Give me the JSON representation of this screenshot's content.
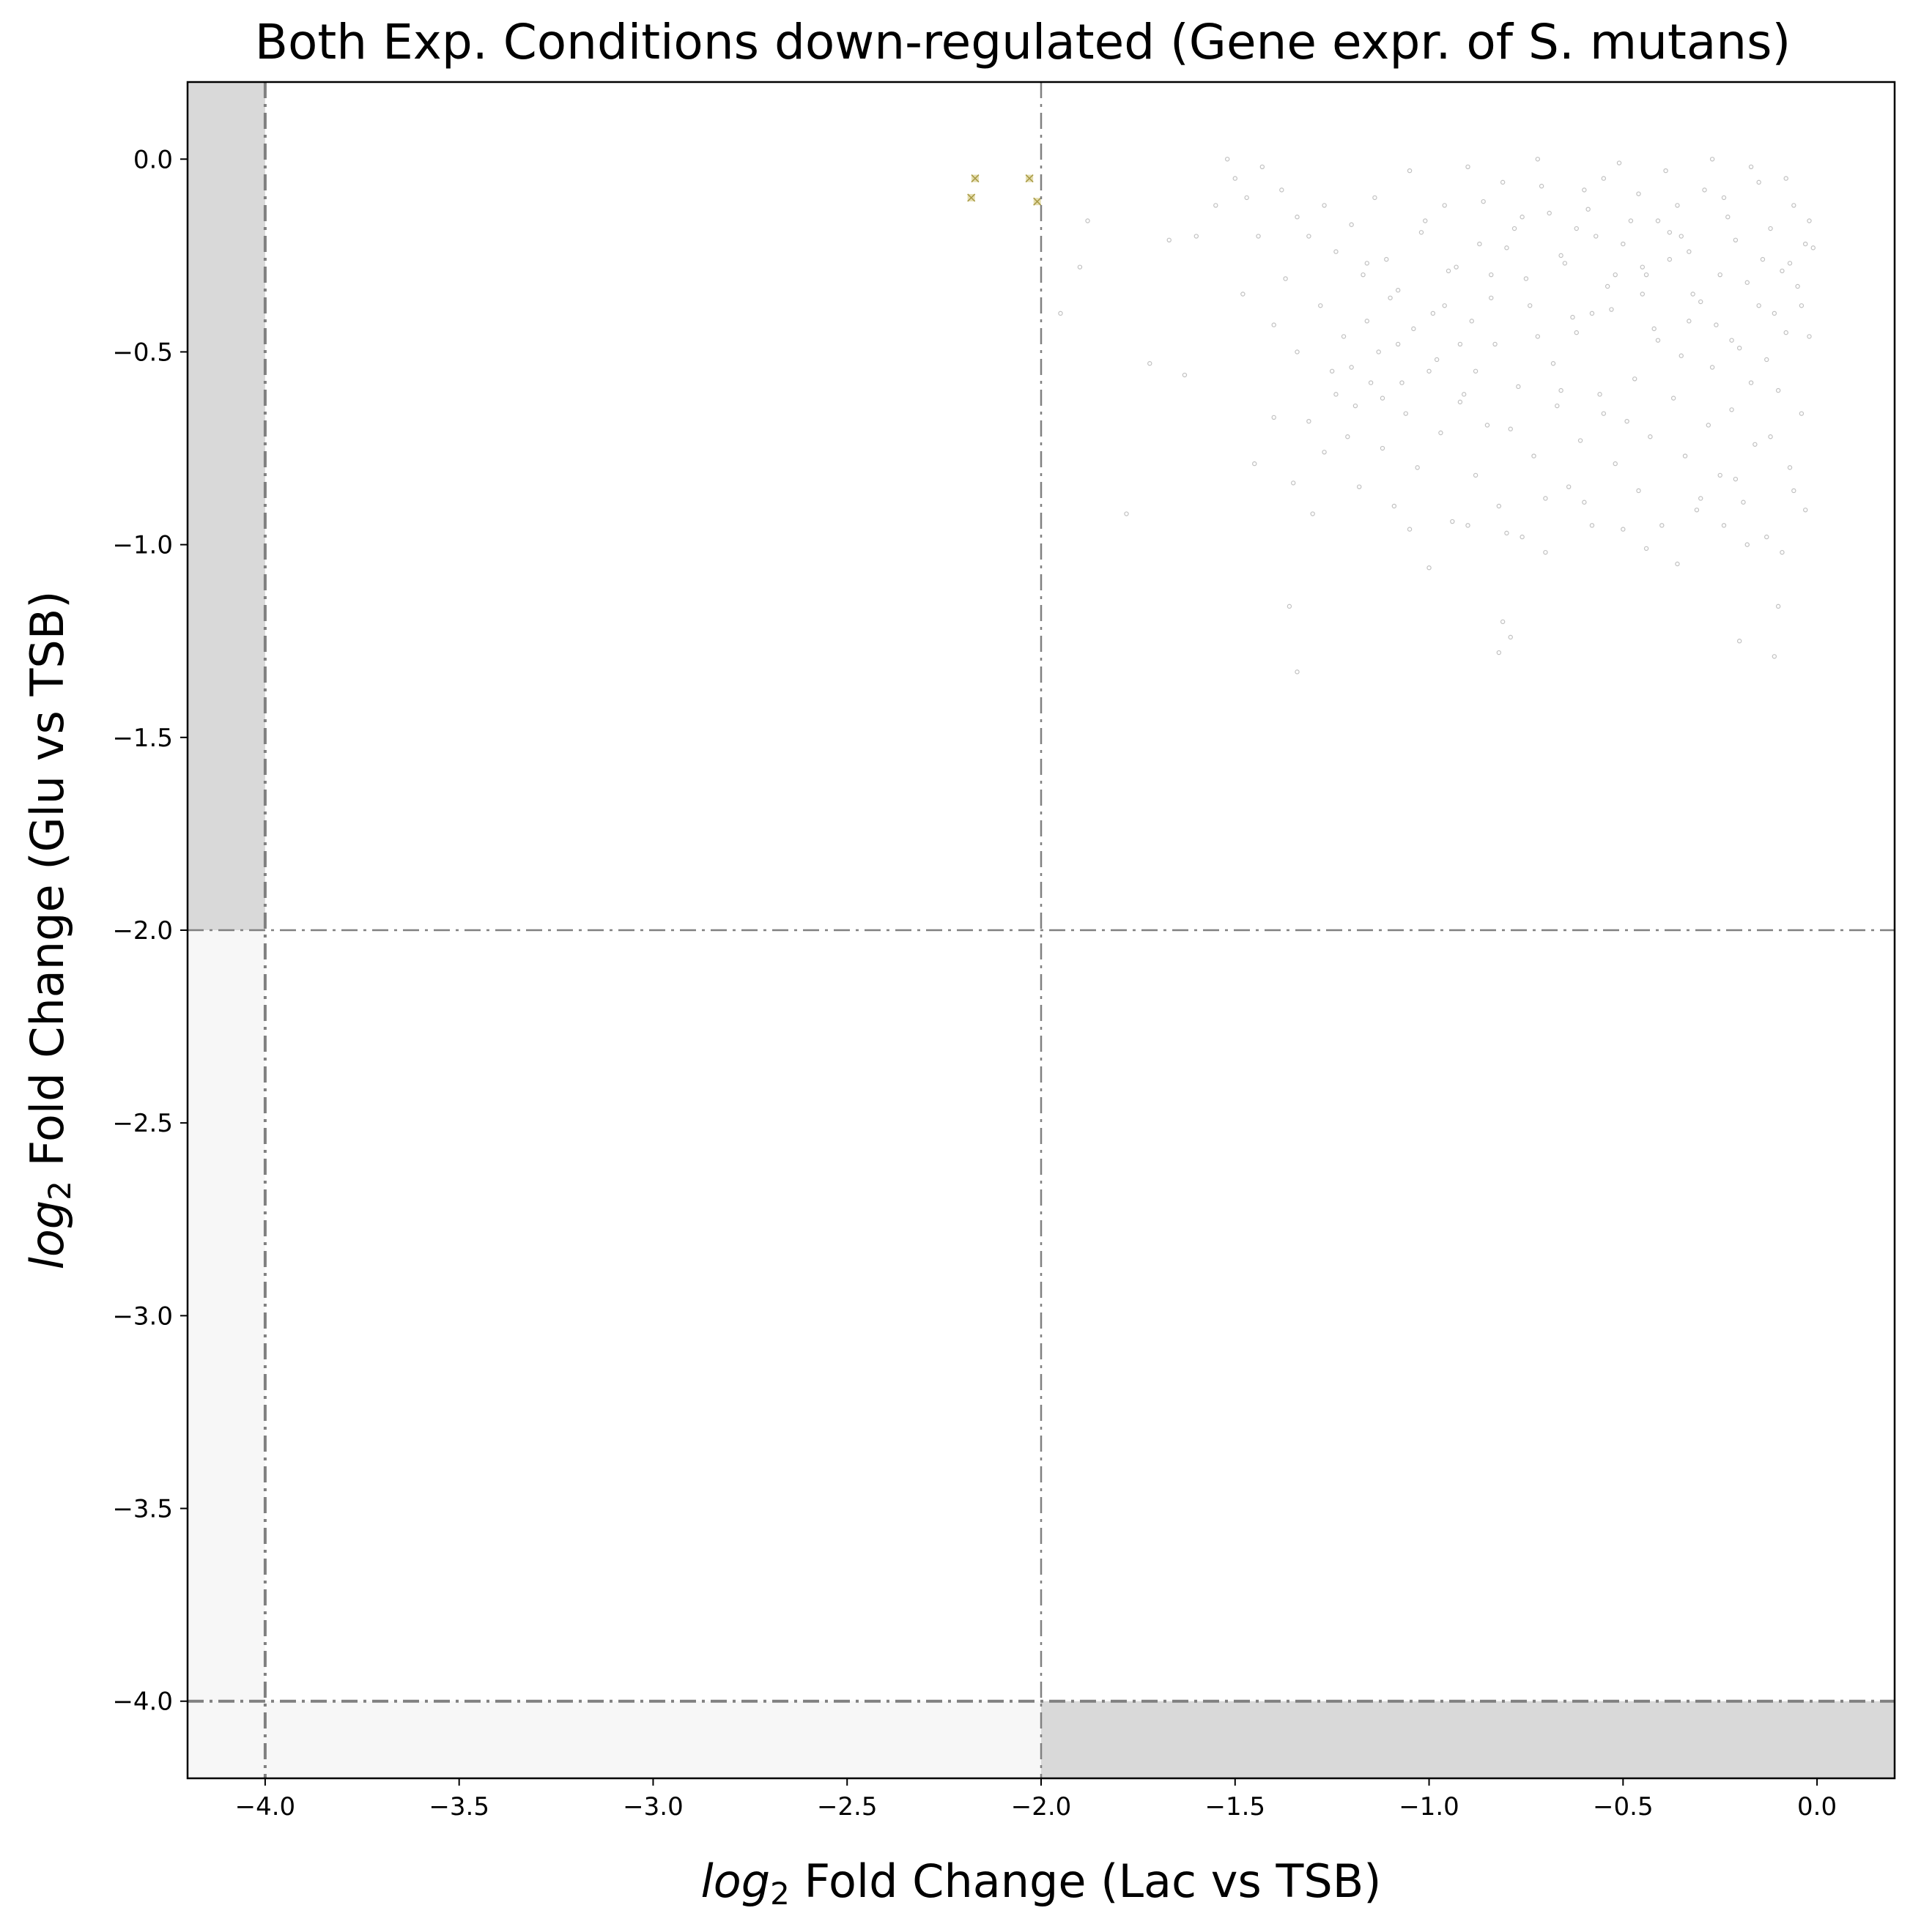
{
  "chart_data": {
    "type": "scatter",
    "title": "Both Exp. Conditions down-regulated (Gene expr. of S. mutans)",
    "xlabel_italic": "log",
    "xlabel_sub": "2",
    "xlabel_rest": " Fold Change (Lac vs TSB)",
    "ylabel_italic": "log",
    "ylabel_sub": "2",
    "ylabel_rest": " Fold Change (Glu vs TSB)",
    "xlim": [
      -4.2,
      0.2
    ],
    "ylim": [
      -4.2,
      0.2
    ],
    "x_ticks": [
      -4.0,
      -3.5,
      -3.0,
      -2.5,
      -2.0,
      -1.5,
      -1.0,
      -0.5,
      0.0
    ],
    "y_ticks": [
      0.0,
      -0.5,
      -1.0,
      -1.5,
      -2.0,
      -2.5,
      -3.0,
      -3.5,
      -4.0
    ],
    "x_tick_labels": [
      "−4.0",
      "−3.5",
      "−3.0",
      "−2.5",
      "−2.0",
      "−1.5",
      "−1.0",
      "−0.5",
      "0.0"
    ],
    "y_tick_labels": [
      "0.0",
      "−0.5",
      "−1.0",
      "−1.5",
      "−2.0",
      "−2.5",
      "−3.0",
      "−3.5",
      "−4.0"
    ],
    "grid": false,
    "threshold_lines": {
      "x": [
        -4.0,
        -2.0
      ],
      "y": [
        -2.0,
        -4.0
      ]
    },
    "colors": {
      "shade_dark": "#d9d9d9",
      "shade_light": "#f7f7f7",
      "threshold_line": "#808080",
      "background_points": "#c0c0c0",
      "highlight_points": "#d4c87a"
    },
    "series": [
      {
        "points": [
          [
            -1.52,
            0.0
          ],
          [
            -1.5,
            -0.05
          ],
          [
            -1.47,
            -0.1
          ],
          [
            -1.43,
            -0.02
          ],
          [
            -1.38,
            -0.08
          ],
          [
            -1.34,
            -0.15
          ],
          [
            -1.31,
            -0.2
          ],
          [
            -1.27,
            -0.12
          ],
          [
            -1.24,
            -0.24
          ],
          [
            -1.2,
            -0.17
          ],
          [
            -1.17,
            -0.3
          ],
          [
            -1.14,
            -0.1
          ],
          [
            -1.11,
            -0.26
          ],
          [
            -1.08,
            -0.34
          ],
          [
            -1.05,
            -0.03
          ],
          [
            -1.02,
            -0.19
          ],
          [
            -0.99,
            -0.4
          ],
          [
            -0.96,
            -0.12
          ],
          [
            -0.93,
            -0.28
          ],
          [
            -0.9,
            -0.02
          ],
          [
            -0.87,
            -0.22
          ],
          [
            -0.84,
            -0.36
          ],
          [
            -0.81,
            -0.06
          ],
          [
            -0.78,
            -0.18
          ],
          [
            -0.75,
            -0.31
          ],
          [
            -0.72,
            -0.0
          ],
          [
            -0.69,
            -0.14
          ],
          [
            -0.66,
            -0.25
          ],
          [
            -0.63,
            -0.41
          ],
          [
            -0.6,
            -0.08
          ],
          [
            -0.57,
            -0.2
          ],
          [
            -0.54,
            -0.33
          ],
          [
            -0.51,
            -0.01
          ],
          [
            -0.48,
            -0.16
          ],
          [
            -0.45,
            -0.28
          ],
          [
            -0.42,
            -0.44
          ],
          [
            -0.39,
            -0.03
          ],
          [
            -0.36,
            -0.12
          ],
          [
            -0.33,
            -0.24
          ],
          [
            -0.3,
            -0.37
          ],
          [
            -0.27,
            -0.0
          ],
          [
            -0.24,
            -0.1
          ],
          [
            -0.21,
            -0.21
          ],
          [
            -0.18,
            -0.32
          ],
          [
            -0.15,
            -0.06
          ],
          [
            -0.12,
            -0.18
          ],
          [
            -0.09,
            -0.29
          ],
          [
            -0.06,
            -0.12
          ],
          [
            -0.03,
            -0.22
          ],
          [
            -0.02,
            -0.46
          ],
          [
            -0.05,
            -0.33
          ],
          [
            -0.08,
            -0.05
          ],
          [
            -0.11,
            -0.4
          ],
          [
            -0.14,
            -0.26
          ],
          [
            -0.17,
            -0.02
          ],
          [
            -0.2,
            -0.49
          ],
          [
            -0.23,
            -0.15
          ],
          [
            -0.26,
            -0.43
          ],
          [
            -0.29,
            -0.08
          ],
          [
            -0.32,
            -0.35
          ],
          [
            -0.35,
            -0.51
          ],
          [
            -0.38,
            -0.19
          ],
          [
            -0.41,
            -0.47
          ],
          [
            -0.44,
            -0.3
          ],
          [
            -0.47,
            -0.57
          ],
          [
            -0.5,
            -0.22
          ],
          [
            -0.53,
            -0.39
          ],
          [
            -0.56,
            -0.61
          ],
          [
            -0.59,
            -0.13
          ],
          [
            -0.62,
            -0.45
          ],
          [
            -0.65,
            -0.27
          ],
          [
            -0.68,
            -0.53
          ],
          [
            -0.71,
            -0.07
          ],
          [
            -0.74,
            -0.38
          ],
          [
            -0.77,
            -0.59
          ],
          [
            -0.8,
            -0.23
          ],
          [
            -0.83,
            -0.48
          ],
          [
            -0.86,
            -0.11
          ],
          [
            -0.89,
            -0.42
          ],
          [
            -0.92,
            -0.63
          ],
          [
            -0.95,
            -0.29
          ],
          [
            -0.98,
            -0.52
          ],
          [
            -1.01,
            -0.16
          ],
          [
            -1.04,
            -0.44
          ],
          [
            -1.07,
            -0.58
          ],
          [
            -1.1,
            -0.36
          ],
          [
            -1.13,
            -0.5
          ],
          [
            -1.16,
            -0.27
          ],
          [
            -1.19,
            -0.64
          ],
          [
            -1.22,
            -0.46
          ],
          [
            -1.25,
            -0.55
          ],
          [
            -1.28,
            -0.38
          ],
          [
            -1.31,
            -0.68
          ],
          [
            -1.34,
            -0.5
          ],
          [
            -1.37,
            -0.31
          ],
          [
            -1.4,
            -0.43
          ],
          [
            -1.44,
            -0.2
          ],
          [
            -1.48,
            -0.35
          ],
          [
            -1.55,
            -0.12
          ],
          [
            -1.6,
            -0.2
          ],
          [
            -1.63,
            -0.56
          ],
          [
            -1.67,
            -0.21
          ],
          [
            -1.72,
            -0.53
          ],
          [
            -1.78,
            -0.92
          ],
          [
            -1.88,
            -0.16
          ],
          [
            -1.9,
            -0.28
          ],
          [
            -1.95,
            -0.4
          ],
          [
            -1.45,
            -0.79
          ],
          [
            -1.4,
            -0.67
          ],
          [
            -1.35,
            -0.84
          ],
          [
            -1.3,
            -0.92
          ],
          [
            -1.27,
            -0.76
          ],
          [
            -1.24,
            -0.61
          ],
          [
            -1.21,
            -0.72
          ],
          [
            -1.18,
            -0.85
          ],
          [
            -1.15,
            -0.58
          ],
          [
            -1.12,
            -0.75
          ],
          [
            -1.09,
            -0.9
          ],
          [
            -1.06,
            -0.66
          ],
          [
            -1.03,
            -0.8
          ],
          [
            -1.0,
            -1.06
          ],
          [
            -0.97,
            -0.71
          ],
          [
            -0.94,
            -0.94
          ],
          [
            -0.91,
            -0.61
          ],
          [
            -0.88,
            -0.82
          ],
          [
            -0.85,
            -0.69
          ],
          [
            -0.82,
            -0.9
          ],
          [
            -0.79,
            -0.7
          ],
          [
            -0.76,
            -0.98
          ],
          [
            -0.73,
            -0.77
          ],
          [
            -0.7,
            -0.88
          ],
          [
            -0.67,
            -0.64
          ],
          [
            -0.64,
            -0.85
          ],
          [
            -0.61,
            -0.73
          ],
          [
            -0.58,
            -0.95
          ],
          [
            -0.55,
            -0.66
          ],
          [
            -0.52,
            -0.79
          ],
          [
            -0.49,
            -0.68
          ],
          [
            -0.46,
            -0.86
          ],
          [
            -0.43,
            -0.72
          ],
          [
            -0.4,
            -0.95
          ],
          [
            -0.37,
            -0.62
          ],
          [
            -0.34,
            -0.77
          ],
          [
            -0.31,
            -0.91
          ],
          [
            -0.28,
            -0.69
          ],
          [
            -0.25,
            -0.82
          ],
          [
            -0.22,
            -0.65
          ],
          [
            -0.19,
            -0.89
          ],
          [
            -0.16,
            -0.74
          ],
          [
            -0.13,
            -0.98
          ],
          [
            -0.1,
            -0.6
          ],
          [
            -0.07,
            -0.8
          ],
          [
            -0.04,
            -0.66
          ],
          [
            -0.03,
            -0.91
          ],
          [
            -0.06,
            -0.86
          ],
          [
            -0.09,
            -1.02
          ],
          [
            -0.12,
            -0.72
          ],
          [
            -0.18,
            -1.0
          ],
          [
            -0.21,
            -0.83
          ],
          [
            -0.24,
            -0.95
          ],
          [
            -0.3,
            -0.88
          ],
          [
            -0.36,
            -1.05
          ],
          [
            -0.44,
            -1.01
          ],
          [
            -0.5,
            -0.96
          ],
          [
            -0.6,
            -0.89
          ],
          [
            -0.7,
            -1.02
          ],
          [
            -0.8,
            -0.97
          ],
          [
            -0.9,
            -0.95
          ],
          [
            -1.05,
            -0.96
          ],
          [
            -1.36,
            -1.16
          ],
          [
            -1.34,
            -1.33
          ],
          [
            -0.81,
            -1.2
          ],
          [
            -0.79,
            -1.24
          ],
          [
            -0.82,
            -1.28
          ],
          [
            -0.1,
            -1.16
          ],
          [
            -0.2,
            -1.25
          ],
          [
            -0.11,
            -1.29
          ],
          [
            -0.55,
            -0.05
          ],
          [
            -0.46,
            -0.09
          ],
          [
            -0.41,
            -0.16
          ],
          [
            -0.38,
            -0.26
          ],
          [
            -0.33,
            -0.42
          ],
          [
            -0.27,
            -0.54
          ],
          [
            -0.22,
            -0.47
          ],
          [
            -0.17,
            -0.58
          ],
          [
            -0.13,
            -0.52
          ],
          [
            -0.08,
            -0.45
          ],
          [
            -0.04,
            -0.38
          ],
          [
            -0.01,
            -0.23
          ],
          [
            -0.02,
            -0.16
          ],
          [
            -0.07,
            -0.27
          ],
          [
            -0.15,
            -0.38
          ],
          [
            -0.25,
            -0.3
          ],
          [
            -0.35,
            -0.2
          ],
          [
            -0.45,
            -0.35
          ],
          [
            -0.52,
            -0.3
          ],
          [
            -0.58,
            -0.4
          ],
          [
            -0.62,
            -0.18
          ],
          [
            -0.66,
            -0.6
          ],
          [
            -0.72,
            -0.46
          ],
          [
            -0.76,
            -0.15
          ],
          [
            -0.84,
            -0.3
          ],
          [
            -0.88,
            -0.55
          ],
          [
            -0.92,
            -0.48
          ],
          [
            -0.96,
            -0.38
          ],
          [
            -1.0,
            -0.55
          ],
          [
            -1.08,
            -0.48
          ],
          [
            -1.12,
            -0.62
          ],
          [
            -1.16,
            -0.42
          ],
          [
            -1.2,
            -0.54
          ]
        ]
      },
      {
        "points": [
          [
            -2.17,
            -0.05
          ],
          [
            -2.18,
            -0.1
          ],
          [
            -2.03,
            -0.05
          ],
          [
            -2.01,
            -0.11
          ]
        ]
      }
    ]
  }
}
